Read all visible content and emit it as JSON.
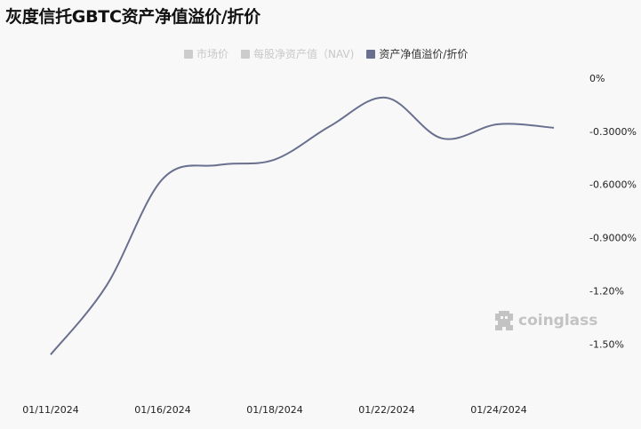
{
  "title": "灰度信托GBTC资产净值溢价/折价",
  "legend": [
    {
      "label": "市场价",
      "color": "#cccccc",
      "active": false
    },
    {
      "label": "每股净资产值（NAV)",
      "color": "#cccccc",
      "active": false
    },
    {
      "label": "资产净值溢价/折价",
      "color": "#69708f",
      "active": true
    }
  ],
  "watermark": "coinglass",
  "colors": {
    "line": "#69708f",
    "axis_text": "#222222",
    "inactive_text": "#c8c8c8",
    "background": "#f8f8f8"
  },
  "chart_data": {
    "type": "line",
    "title": "灰度信托GBTC资产净值溢价/折价",
    "xlabel": "",
    "ylabel": "",
    "x_tick_labels": [
      "01/11/2024",
      "01/16/2024",
      "01/18/2024",
      "01/22/2024",
      "01/24/2024"
    ],
    "y_tick_labels": [
      "0%",
      "-0.3000%",
      "-0.6000%",
      "-0.9000%",
      "-1.20%",
      "-1.50%"
    ],
    "y_ticks": [
      0,
      -0.3,
      -0.6,
      -0.9,
      -1.2,
      -1.5
    ],
    "ylim": [
      -1.6,
      0
    ],
    "grid": false,
    "y_axis_position": "right",
    "legend_position": "top-center",
    "series": [
      {
        "name": "资产净值溢价/折价",
        "x": [
          "01/11/2024",
          "01/12/2024",
          "01/16/2024",
          "01/17/2024",
          "01/18/2024",
          "01/19/2024",
          "01/22/2024",
          "01/23/2024",
          "01/24/2024",
          "01/25/2024"
        ],
        "values": [
          -1.56,
          -1.17,
          -0.57,
          -0.49,
          -0.46,
          -0.27,
          -0.11,
          -0.34,
          -0.26,
          -0.28
        ]
      }
    ]
  }
}
